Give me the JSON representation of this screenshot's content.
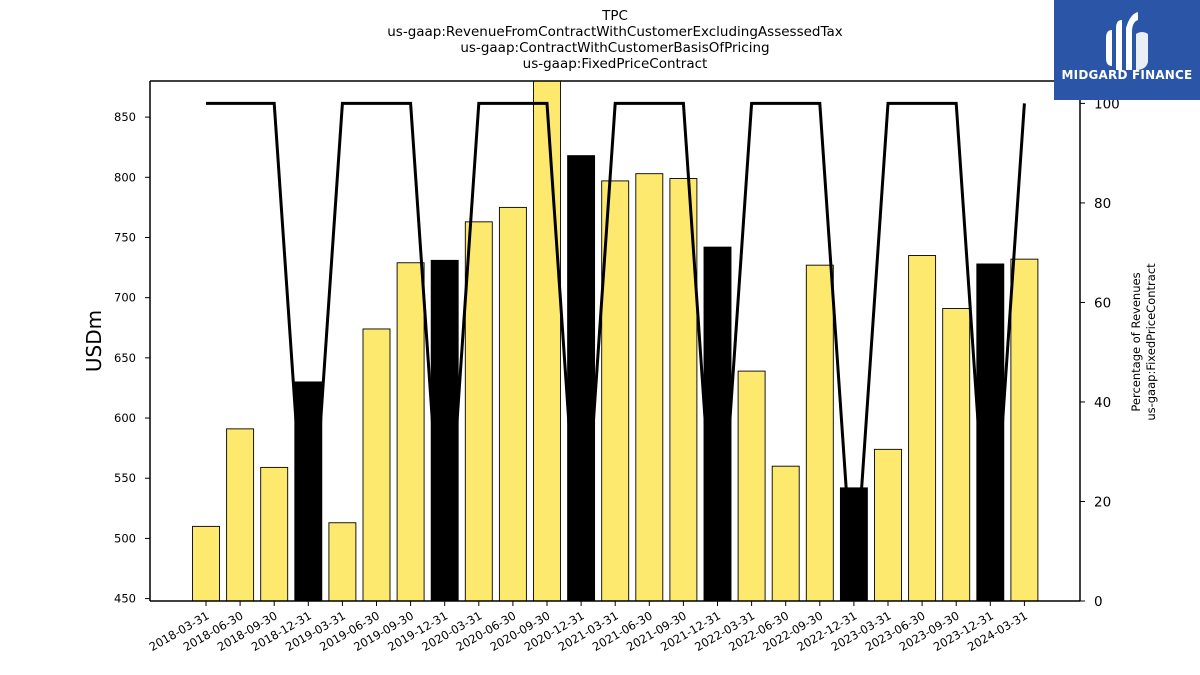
{
  "chart_data": {
    "type": "bar",
    "title_lines": [
      "TPC",
      "us-gaap:RevenueFromContractWithCustomerExcludingAssessedTax",
      "us-gaap:ContractWithCustomerBasisOfPricing",
      "us-gaap:FixedPriceContract"
    ],
    "ylabel": "USDm",
    "y2label_lines": [
      "Percentage of Revenues",
      "us-gaap:FixedPriceContract"
    ],
    "ylim": [
      448,
      880
    ],
    "y_ticks": [
      450,
      500,
      550,
      600,
      650,
      700,
      750,
      800,
      850
    ],
    "y2lim": [
      0,
      104.5
    ],
    "y2_ticks": [
      0,
      20,
      40,
      60,
      80,
      100
    ],
    "categories": [
      "2018-03-31",
      "2018-06-30",
      "2018-09-30",
      "2018-12-31",
      "2019-03-31",
      "2019-06-30",
      "2019-09-30",
      "2019-12-31",
      "2020-03-31",
      "2020-06-30",
      "2020-09-30",
      "2020-12-31",
      "2021-03-31",
      "2021-06-30",
      "2021-09-30",
      "2021-12-31",
      "2022-03-31",
      "2022-06-30",
      "2022-09-30",
      "2022-12-31",
      "2023-03-31",
      "2023-06-30",
      "2023-09-30",
      "2023-12-31",
      "2024-03-31"
    ],
    "series": [
      {
        "values": [
          510,
          591,
          559,
          630,
          513,
          674,
          729,
          731,
          763,
          775,
          880,
          818,
          797,
          803,
          799,
          742,
          639,
          560,
          727,
          542,
          574,
          735,
          691,
          728,
          732
        ],
        "bar_colors": [
          "#fde96e",
          "#fde96e",
          "#fde96e",
          "#000000",
          "#fde96e",
          "#fde96e",
          "#fde96e",
          "#000000",
          "#fde96e",
          "#fde96e",
          "#fde96e",
          "#000000",
          "#fde96e",
          "#fde96e",
          "#fde96e",
          "#000000",
          "#fde96e",
          "#fde96e",
          "#fde96e",
          "#000000",
          "#fde96e",
          "#fde96e",
          "#fde96e",
          "#000000",
          "#fde96e"
        ]
      },
      {
        "axis": "right",
        "type": "line",
        "values": [
          100,
          100,
          100,
          0,
          100,
          100,
          100,
          0,
          100,
          100,
          100,
          0,
          100,
          100,
          100,
          0,
          100,
          100,
          100,
          0,
          100,
          100,
          100,
          0,
          100
        ],
        "color": "#000000"
      }
    ],
    "grid": false
  },
  "logo": {
    "text": "MIDGARD FINANCE",
    "background": "#2b56a8"
  }
}
